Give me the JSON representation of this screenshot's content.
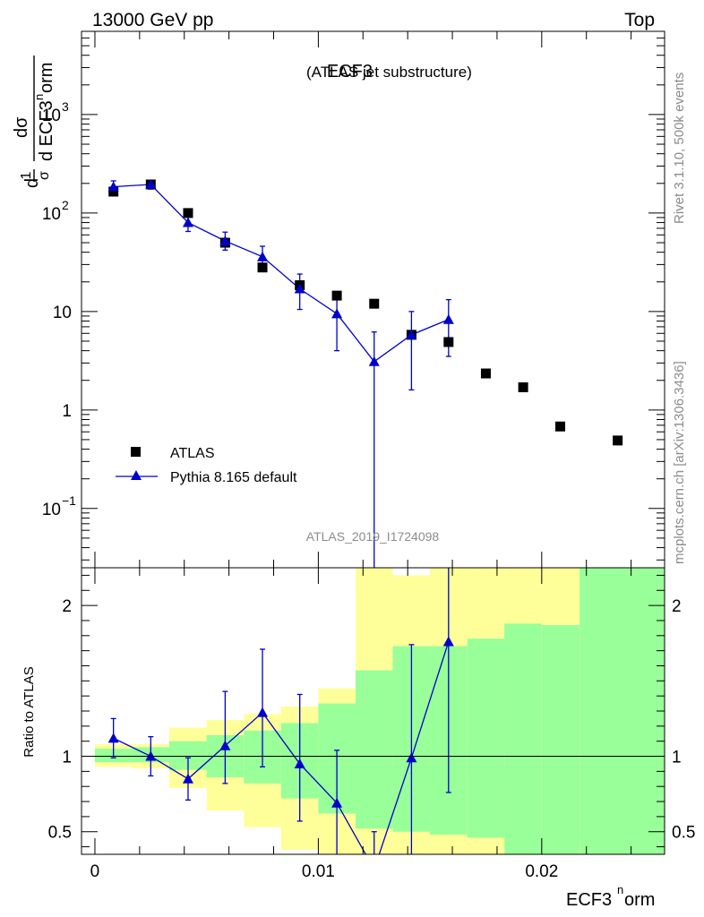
{
  "header": {
    "left": "13000 GeV pp",
    "right": "Top"
  },
  "side": {
    "rivet": "Rivet 3.1.10,  500k events",
    "mcplots": "mcplots.cern.ch [arXiv:1306.3436]"
  },
  "chart_data": [
    {
      "type": "scatter",
      "panel": "main",
      "title": "ECF3",
      "subtitle": "(ATLAS jet substructure)",
      "watermark": "ATLAS_2019_I1724098",
      "ylabel": {
        "top": "dσ",
        "bottom_prefix": "d ECF3",
        "bottom_sup": "n",
        "bottom_suffix": "orm",
        "frac_num": "1",
        "frac_den": "σ",
        "pre": "d"
      },
      "yscale": "log",
      "ylim": [
        0.025,
        7000
      ],
      "xlim": [
        -0.0006,
        0.0255
      ],
      "ytick_labels": [
        {
          "v": 0.1,
          "base": "10",
          "exp": "−1"
        },
        {
          "v": 1,
          "base": "1",
          "exp": ""
        },
        {
          "v": 10,
          "base": "10",
          "exp": ""
        },
        {
          "v": 100,
          "base": "10",
          "exp": "2"
        },
        {
          "v": 1000,
          "base": "10",
          "exp": "3"
        }
      ],
      "legend": {
        "placement": "bottom-left",
        "entries": [
          "ATLAS",
          "Pythia 8.165 default"
        ]
      },
      "series": [
        {
          "name": "ATLAS",
          "marker": "square",
          "color": "#000000",
          "x": [
            0.00083,
            0.0025,
            0.00417,
            0.00583,
            0.0075,
            0.00917,
            0.01083,
            0.0125,
            0.01417,
            0.01583,
            0.0175,
            0.01917,
            0.02083,
            0.0234
          ],
          "y": [
            165,
            195,
            100,
            50,
            28,
            18.5,
            14.5,
            12,
            5.8,
            4.9,
            2.35,
            1.7,
            0.68,
            0.49
          ]
        },
        {
          "name": "Pythia 8.165 default",
          "marker": "triangle",
          "color": "#0000cc",
          "x": [
            0.00083,
            0.0025,
            0.00417,
            0.00583,
            0.0075,
            0.00917,
            0.01083,
            0.0125,
            0.01417,
            0.01583
          ],
          "y": [
            185,
            195,
            80,
            52,
            36,
            17,
            9.5,
            3.1,
            5.8,
            8.3
          ],
          "ylo": [
            158,
            175,
            65,
            42,
            29,
            10.5,
            4.0,
            0.01,
            1.6,
            3.5
          ],
          "yhi": [
            212,
            215,
            96,
            64,
            46,
            24,
            15.5,
            6.2,
            10,
            13.2
          ]
        }
      ]
    },
    {
      "type": "line",
      "panel": "ratio",
      "ylabel": "Ratio to ATLAS",
      "xlabel_prefix": "ECF3",
      "xlabel_sup": "n",
      "xlabel_suffix": "orm",
      "ylim": [
        0.35,
        2.25
      ],
      "xlim": [
        -0.0006,
        0.0255
      ],
      "x_tick_labels": [
        {
          "v": 0,
          "label": "0"
        },
        {
          "v": 0.01,
          "label": "0.01"
        },
        {
          "v": 0.02,
          "label": "0.02"
        }
      ],
      "y_tick_labels": [
        {
          "v": 0.5,
          "label": "0.5"
        },
        {
          "v": 1,
          "label": "1"
        },
        {
          "v": 2,
          "label": "2"
        }
      ],
      "bin_edges": [
        0,
        0.00167,
        0.00333,
        0.005,
        0.00667,
        0.00833,
        0.01,
        0.01167,
        0.01333,
        0.015,
        0.01667,
        0.01833,
        0.02,
        0.0217,
        0.0255
      ],
      "band_green": {
        "low": [
          0.96,
          0.96,
          0.91,
          0.86,
          0.82,
          0.72,
          0.62,
          0.52,
          0.5,
          0.48,
          0.46,
          0.3,
          0.3,
          0.3
        ],
        "high": [
          1.05,
          1.06,
          1.1,
          1.14,
          1.17,
          1.22,
          1.35,
          1.57,
          1.73,
          1.73,
          1.78,
          1.88,
          1.87,
          2.3
        ]
      },
      "band_yellow": {
        "low": [
          0.93,
          0.92,
          0.79,
          0.64,
          0.53,
          0.38,
          0.25,
          0.1,
          0.1,
          0.25,
          0.3,
          0.38,
          0.3,
          0.3
        ],
        "high": [
          1.08,
          1.08,
          1.19,
          1.24,
          1.28,
          1.33,
          1.45,
          2.3,
          2.2,
          2.3,
          2.3,
          2.3,
          2.3,
          2.3
        ]
      },
      "series": [
        {
          "name": "Pythia 8.165 default",
          "color": "#0000cc",
          "x": [
            0.00083,
            0.0025,
            0.00417,
            0.00583,
            0.0075,
            0.00917,
            0.01083,
            0.0125,
            0.01417,
            0.01583
          ],
          "y": [
            1.12,
            1.0,
            0.85,
            1.07,
            1.29,
            0.95,
            0.69,
            0.25,
            0.99,
            1.76
          ],
          "ylo": [
            0.99,
            0.87,
            0.71,
            0.82,
            0.93,
            0.57,
            0.2,
            0.0,
            0.25,
            0.76
          ],
          "yhi": [
            1.25,
            1.13,
            0.99,
            1.43,
            1.71,
            1.41,
            1.04,
            0.5,
            1.74,
            2.3
          ]
        }
      ]
    }
  ]
}
